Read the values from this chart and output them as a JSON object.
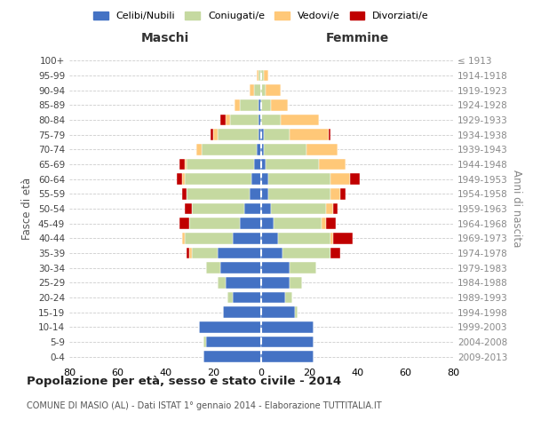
{
  "age_groups": [
    "100+",
    "95-99",
    "90-94",
    "85-89",
    "80-84",
    "75-79",
    "70-74",
    "65-69",
    "60-64",
    "55-59",
    "50-54",
    "45-49",
    "40-44",
    "35-39",
    "30-34",
    "25-29",
    "20-24",
    "15-19",
    "10-14",
    "5-9",
    "0-4"
  ],
  "birth_years": [
    "≤ 1913",
    "1914-1918",
    "1919-1923",
    "1924-1928",
    "1929-1933",
    "1934-1938",
    "1939-1943",
    "1944-1948",
    "1949-1953",
    "1954-1958",
    "1959-1963",
    "1964-1968",
    "1969-1973",
    "1974-1978",
    "1979-1983",
    "1984-1988",
    "1989-1993",
    "1994-1998",
    "1999-2003",
    "2004-2008",
    "2009-2013"
  ],
  "males": {
    "celibi": [
      0,
      0,
      0,
      1,
      1,
      1,
      2,
      3,
      4,
      5,
      7,
      9,
      12,
      18,
      17,
      15,
      12,
      16,
      26,
      23,
      24
    ],
    "coniugati": [
      0,
      1,
      3,
      8,
      12,
      17,
      23,
      28,
      28,
      26,
      22,
      21,
      20,
      11,
      6,
      3,
      2,
      0,
      0,
      1,
      0
    ],
    "vedovi": [
      0,
      1,
      2,
      2,
      2,
      2,
      2,
      1,
      1,
      0,
      0,
      0,
      1,
      1,
      0,
      0,
      0,
      0,
      0,
      0,
      0
    ],
    "divorziati": [
      0,
      0,
      0,
      0,
      2,
      1,
      0,
      2,
      2,
      2,
      3,
      4,
      0,
      1,
      0,
      0,
      0,
      0,
      0,
      0,
      0
    ]
  },
  "females": {
    "nubili": [
      0,
      0,
      0,
      0,
      0,
      1,
      1,
      2,
      3,
      3,
      4,
      5,
      7,
      9,
      12,
      12,
      10,
      14,
      22,
      22,
      22
    ],
    "coniugate": [
      0,
      1,
      2,
      4,
      8,
      11,
      18,
      22,
      26,
      26,
      23,
      20,
      22,
      20,
      11,
      5,
      3,
      1,
      0,
      0,
      0
    ],
    "vedove": [
      0,
      2,
      6,
      7,
      16,
      16,
      13,
      11,
      8,
      4,
      3,
      2,
      1,
      0,
      0,
      0,
      0,
      0,
      0,
      0,
      0
    ],
    "divorziate": [
      0,
      0,
      0,
      0,
      0,
      1,
      0,
      0,
      4,
      2,
      2,
      4,
      8,
      4,
      0,
      0,
      0,
      0,
      0,
      0,
      0
    ]
  },
  "colors": {
    "celibi": "#4472C4",
    "coniugati": "#c5d9a0",
    "vedovi": "#ffc878",
    "divorziati": "#c00000"
  },
  "title": "Popolazione per età, sesso e stato civile - 2014",
  "subtitle": "COMUNE DI MASIO (AL) - Dati ISTAT 1° gennaio 2014 - Elaborazione TUTTITALIA.IT",
  "xlabel_left": "Maschi",
  "xlabel_right": "Femmine",
  "ylabel_left": "Fasce di età",
  "ylabel_right": "Anni di nascita",
  "xlim": 80,
  "legend_labels": [
    "Celibi/Nubili",
    "Coniugati/e",
    "Vedovi/e",
    "Divorziati/e"
  ],
  "bg_color": "#ffffff",
  "grid_color": "#cccccc"
}
